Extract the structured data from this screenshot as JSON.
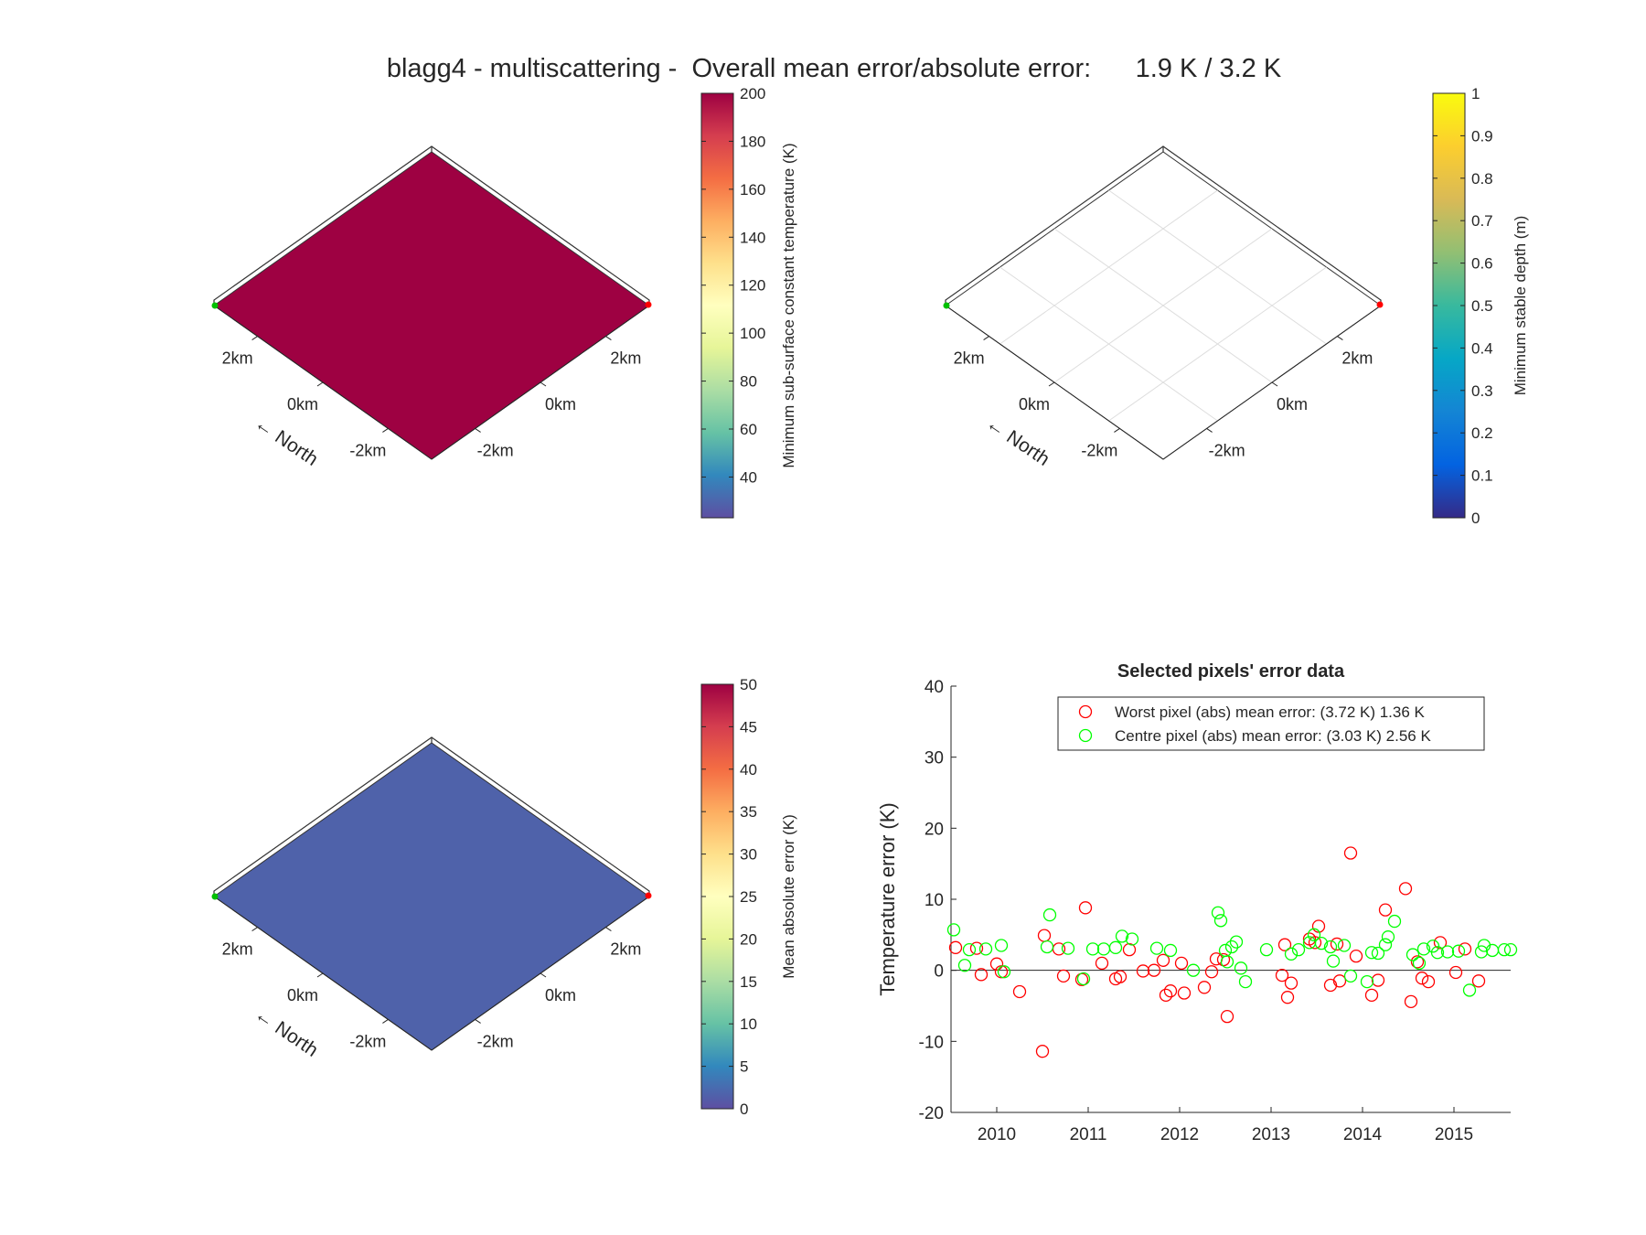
{
  "figure": {
    "title": "blagg4 - multiscattering -  Overall mean error/absolute error:      1.9 K / 3.2 K"
  },
  "maps": [
    {
      "id": "map-min-subsurface-temp",
      "surface_color": "#9e0142",
      "show_grid": false,
      "axis_a_ticks": [
        "2km",
        "0km",
        "-2km"
      ],
      "axis_b_ticks": [
        "2km",
        "0km",
        "-2km"
      ],
      "north_label": "North",
      "colorbar": {
        "label": "Minimum sub-surface constant temperature (K)",
        "min": 23,
        "max": 200,
        "ticks": [
          40,
          60,
          80,
          100,
          120,
          140,
          160,
          180,
          200
        ],
        "colormap": "spectral"
      }
    },
    {
      "id": "map-min-stable-depth",
      "surface_color": "#ffffff",
      "show_grid": true,
      "axis_a_ticks": [
        "2km",
        "0km",
        "-2km"
      ],
      "axis_b_ticks": [
        "2km",
        "0km",
        "-2km"
      ],
      "north_label": "North",
      "colorbar": {
        "label": "Minimum stable depth (m)",
        "min": 0,
        "max": 1,
        "ticks": [
          0,
          0.1,
          0.2,
          0.3,
          0.4,
          0.5,
          0.6,
          0.7,
          0.8,
          0.9,
          1
        ],
        "colormap": "parula"
      }
    },
    {
      "id": "map-mean-abs-error",
      "surface_color": "#4f62aa",
      "show_grid": false,
      "axis_a_ticks": [
        "2km",
        "0km",
        "-2km"
      ],
      "axis_b_ticks": [
        "2km",
        "0km",
        "-2km"
      ],
      "north_label": "North",
      "colorbar": {
        "label": "Mean absolute error (K)",
        "min": 0,
        "max": 50,
        "ticks": [
          0,
          5,
          10,
          15,
          20,
          25,
          30,
          35,
          40,
          45,
          50
        ],
        "colormap": "spectral"
      }
    }
  ],
  "chart_data": {
    "type": "scatter",
    "title": "Selected pixels' error data",
    "xlabel": "",
    "ylabel": "Temperature error (K)",
    "xlim": [
      2009.5,
      2015.62
    ],
    "ylim": [
      -20,
      40
    ],
    "xticks": [
      2010,
      2011,
      2012,
      2013,
      2014,
      2015
    ],
    "yticks": [
      -20,
      -10,
      0,
      10,
      20,
      30,
      40
    ],
    "zero_line": true,
    "grid": false,
    "legend_position": "top-right",
    "series": [
      {
        "name": "Worst pixel (abs) mean error: (3.72 K) 1.36 K",
        "color": "#ff0000",
        "marker": "open-circle",
        "points": [
          [
            2009.55,
            3.2
          ],
          [
            2009.78,
            3.1
          ],
          [
            2009.83,
            -0.6
          ],
          [
            2010.0,
            0.9
          ],
          [
            2010.05,
            -0.2
          ],
          [
            2010.25,
            -3.0
          ],
          [
            2010.5,
            -11.4
          ],
          [
            2010.52,
            4.9
          ],
          [
            2010.68,
            3.0
          ],
          [
            2010.73,
            -0.8
          ],
          [
            2010.93,
            -1.3
          ],
          [
            2010.97,
            8.8
          ],
          [
            2011.15,
            1.0
          ],
          [
            2011.3,
            -1.2
          ],
          [
            2011.35,
            -0.9
          ],
          [
            2011.45,
            2.9
          ],
          [
            2011.6,
            -0.1
          ],
          [
            2011.72,
            0.0
          ],
          [
            2011.82,
            1.4
          ],
          [
            2011.85,
            -3.5
          ],
          [
            2011.9,
            -2.9
          ],
          [
            2012.02,
            1.0
          ],
          [
            2012.05,
            -3.2
          ],
          [
            2012.27,
            -2.4
          ],
          [
            2012.35,
            -0.2
          ],
          [
            2012.4,
            1.6
          ],
          [
            2012.48,
            1.5
          ],
          [
            2012.52,
            -6.5
          ],
          [
            2013.12,
            -0.7
          ],
          [
            2013.15,
            3.6
          ],
          [
            2013.18,
            -3.8
          ],
          [
            2013.22,
            -1.8
          ],
          [
            2013.42,
            4.4
          ],
          [
            2013.48,
            3.9
          ],
          [
            2013.52,
            6.2
          ],
          [
            2013.65,
            -2.1
          ],
          [
            2013.72,
            3.7
          ],
          [
            2013.75,
            -1.5
          ],
          [
            2013.87,
            16.5
          ],
          [
            2013.93,
            2.0
          ],
          [
            2014.1,
            -3.5
          ],
          [
            2014.17,
            -1.4
          ],
          [
            2014.25,
            8.5
          ],
          [
            2014.47,
            11.5
          ],
          [
            2014.53,
            -4.4
          ],
          [
            2014.6,
            1.2
          ],
          [
            2014.65,
            -1.1
          ],
          [
            2014.72,
            -1.6
          ],
          [
            2014.85,
            3.9
          ],
          [
            2015.02,
            -0.3
          ],
          [
            2015.12,
            3.0
          ],
          [
            2015.27,
            -1.5
          ]
        ]
      },
      {
        "name": "Centre pixel (abs) mean error: (3.03 K) 2.56 K",
        "color": "#00ff00",
        "marker": "open-circle",
        "points": [
          [
            2009.53,
            5.7
          ],
          [
            2009.65,
            0.7
          ],
          [
            2009.7,
            2.9
          ],
          [
            2009.88,
            3.0
          ],
          [
            2010.05,
            3.5
          ],
          [
            2010.08,
            -0.2
          ],
          [
            2010.55,
            3.3
          ],
          [
            2010.58,
            7.8
          ],
          [
            2010.78,
            3.1
          ],
          [
            2010.95,
            -1.2
          ],
          [
            2011.05,
            3.0
          ],
          [
            2011.17,
            3.0
          ],
          [
            2011.3,
            3.2
          ],
          [
            2011.37,
            4.8
          ],
          [
            2011.48,
            4.4
          ],
          [
            2011.75,
            3.1
          ],
          [
            2011.9,
            2.8
          ],
          [
            2012.15,
            0.0
          ],
          [
            2012.42,
            8.1
          ],
          [
            2012.45,
            7.0
          ],
          [
            2012.5,
            2.8
          ],
          [
            2012.52,
            1.2
          ],
          [
            2012.57,
            3.3
          ],
          [
            2012.62,
            4.0
          ],
          [
            2012.67,
            0.3
          ],
          [
            2012.72,
            -1.6
          ],
          [
            2012.95,
            2.9
          ],
          [
            2013.22,
            2.3
          ],
          [
            2013.3,
            2.9
          ],
          [
            2013.42,
            3.9
          ],
          [
            2013.47,
            5.0
          ],
          [
            2013.55,
            3.8
          ],
          [
            2013.65,
            3.3
          ],
          [
            2013.68,
            1.3
          ],
          [
            2013.8,
            3.5
          ],
          [
            2013.87,
            -0.8
          ],
          [
            2014.05,
            -1.6
          ],
          [
            2014.1,
            2.5
          ],
          [
            2014.17,
            2.4
          ],
          [
            2014.25,
            3.6
          ],
          [
            2014.28,
            4.7
          ],
          [
            2014.35,
            6.9
          ],
          [
            2014.55,
            2.2
          ],
          [
            2014.62,
            1.0
          ],
          [
            2014.67,
            3.0
          ],
          [
            2014.77,
            3.4
          ],
          [
            2014.82,
            2.5
          ],
          [
            2014.93,
            2.6
          ],
          [
            2015.05,
            2.7
          ],
          [
            2015.17,
            -2.8
          ],
          [
            2015.3,
            2.6
          ],
          [
            2015.33,
            3.5
          ],
          [
            2015.42,
            2.8
          ],
          [
            2015.55,
            2.9
          ],
          [
            2015.62,
            2.9
          ]
        ]
      }
    ]
  }
}
